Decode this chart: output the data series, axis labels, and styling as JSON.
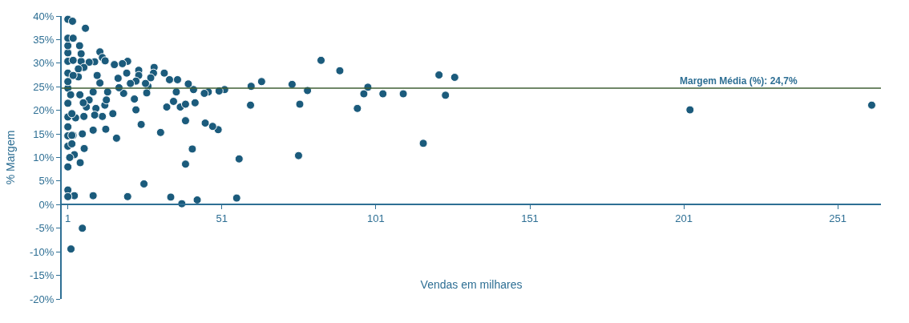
{
  "chart_data": {
    "type": "scatter",
    "xlabel": "Vendas em milhares",
    "ylabel": "% Margem",
    "xlim": [
      -1,
      265
    ],
    "xticks": [
      1,
      51,
      101,
      151,
      201,
      251
    ],
    "ylim": [
      -20,
      40
    ],
    "yticks": [
      {
        "value": -20,
        "label": "-20%"
      },
      {
        "value": -15,
        "label": "-15%"
      },
      {
        "value": -10,
        "label": "-10%"
      },
      {
        "value": -5,
        "label": "-5%"
      },
      {
        "value": 0,
        "label": "0%"
      },
      {
        "value": 5,
        "label": "5%"
      },
      {
        "value": 10,
        "label": "10%"
      },
      {
        "value": 15,
        "label": "15%"
      },
      {
        "value": 20,
        "label": "20%"
      },
      {
        "value": 25,
        "label": "25%"
      },
      {
        "value": 30,
        "label": "30%"
      },
      {
        "value": 35,
        "label": "35%"
      },
      {
        "value": 40,
        "label": "40%"
      }
    ],
    "marker": "circle",
    "ref_lines": [
      {
        "axis": "y",
        "value": 24.7,
        "label": "Margem Média (%): 24,7%",
        "color": "#3f5f35",
        "line_style": "solid"
      }
    ],
    "series": [
      {
        "color": "#1b5b7c",
        "x": [
          262,
          203,
          126.6,
          121.5,
          123.6,
          116.4,
          109.9,
          103.3,
          98.4,
          97.1,
          95,
          89.3,
          83.2,
          78.8,
          76.3,
          75.9,
          73.8,
          63.9,
          60.5,
          60.3,
          56.6,
          55.8,
          51.9,
          49.8,
          48,
          45.6,
          43,
          50.1,
          46.6,
          45.3,
          41.8,
          40.1,
          36.6,
          36.2,
          35.3,
          34,
          33.1,
          37.5,
          39.2,
          42.3,
          39.2,
          32.3,
          41.4,
          39.2,
          38,
          34.4,
          31.1,
          29,
          28.8,
          27.9,
          27,
          26.6,
          26.2,
          24,
          24,
          23.1,
          22.6,
          23.1,
          24.8,
          25.7,
          21.3,
          20.4,
          18.7,
          20.1,
          17.3,
          19.1,
          17.6,
          16.1,
          13.9,
          13,
          13.5,
          15.6,
          12.2,
          13.3,
          16.8,
          20.4,
          11.4,
          12.2,
          13.1,
          11.4,
          10.5,
          9.7,
          7.9,
          9.2,
          10.1,
          9.7,
          9.2,
          7.9,
          7,
          6.2,
          6,
          5.3,
          6.2,
          4.4,
          4.4,
          4.8,
          5.3,
          4.9,
          3.5,
          2.7,
          5.7,
          6.3,
          3.1,
          5,
          9.2,
          3.1,
          1,
          1,
          1.6,
          1,
          1,
          1,
          1,
          1,
          1,
          1,
          1,
          1,
          1,
          1,
          1,
          1,
          1,
          2.7,
          2.7,
          1.9,
          2.3,
          2.3,
          2.3,
          2.5,
          6.7,
          2.7,
          5.7,
          2
        ],
        "values": [
          21.1,
          20.1,
          27,
          27.5,
          23.2,
          13,
          23.5,
          23.5,
          24.9,
          23.5,
          20.4,
          28.4,
          30.6,
          24.2,
          21.3,
          10.4,
          25.5,
          26.1,
          25.1,
          21.1,
          9.7,
          1.4,
          24.4,
          15.9,
          16.6,
          17.3,
          1,
          24.1,
          23.9,
          23.6,
          24.4,
          25.6,
          26.5,
          23.9,
          21.9,
          26.5,
          20.7,
          20.7,
          21.3,
          21.6,
          17.8,
          27.9,
          11.8,
          8.6,
          0.2,
          1.6,
          15.3,
          29.1,
          27.9,
          26.9,
          25.1,
          23.7,
          25.7,
          28.5,
          27.4,
          26.2,
          22.4,
          20.1,
          17,
          4.4,
          25.7,
          30.4,
          29.9,
          27.9,
          26.8,
          23.6,
          24.8,
          29.7,
          23.9,
          21.1,
          22.2,
          19.3,
          18.7,
          16,
          14.1,
          1.7,
          32.4,
          31.2,
          30.5,
          25.8,
          27.4,
          30.3,
          30.2,
          23.9,
          20.4,
          19,
          15.8,
          22.2,
          20.7,
          18.7,
          21.6,
          30.4,
          29.1,
          28.8,
          27.1,
          33.7,
          32,
          23.3,
          18.4,
          14.7,
          15,
          11.9,
          10.6,
          8.9,
          1.9,
          1.9,
          3.1,
          8,
          10,
          12.4,
          14.6,
          16.5,
          18.6,
          21.5,
          24.7,
          26.1,
          27.9,
          30.4,
          32.2,
          33.7,
          35.3,
          39.3,
          1.7,
          30.6,
          27.4,
          23.3,
          19.3,
          14.7,
          12.9,
          38.9,
          37.4,
          35.3,
          -5,
          -9.4
        ]
      }
    ]
  }
}
